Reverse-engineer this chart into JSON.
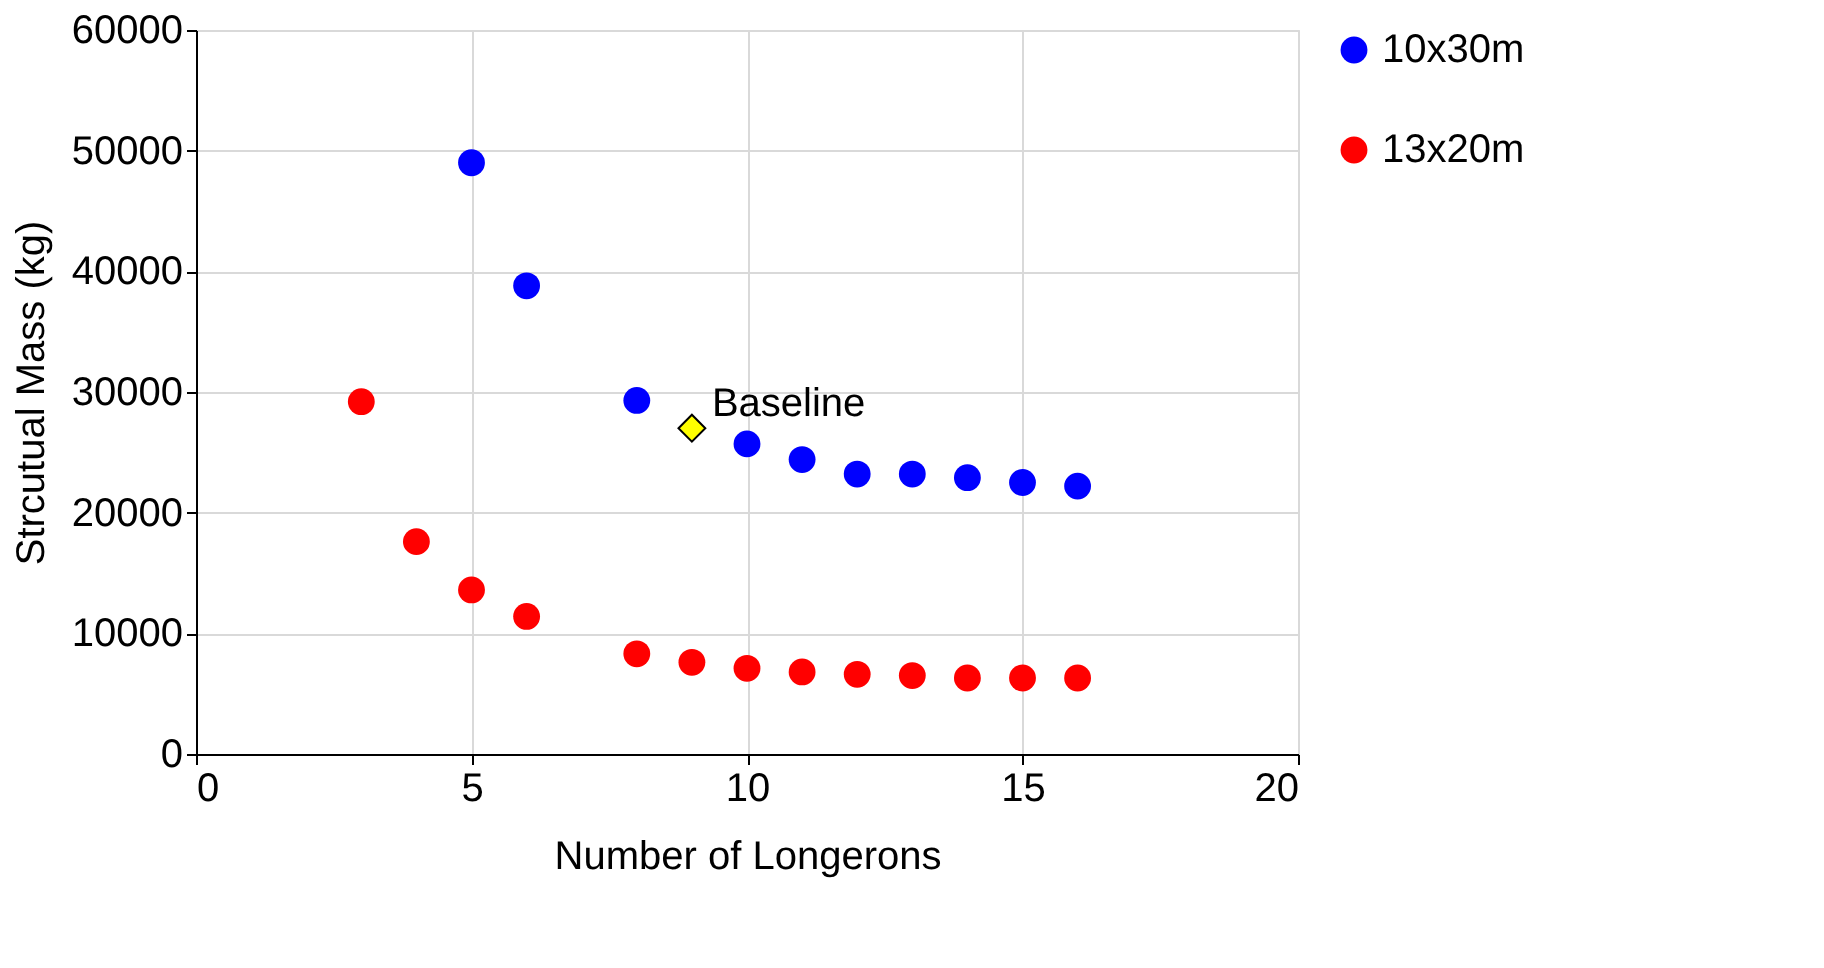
{
  "chart_data": {
    "type": "scatter",
    "xlabel": "Number of Longerons",
    "ylabel": "Strcutual Mass (kg)",
    "xlim": [
      0,
      20
    ],
    "xticks": [
      0,
      5,
      10,
      15,
      20
    ],
    "ylim": [
      0,
      60000
    ],
    "yticks": [
      0,
      10000,
      20000,
      30000,
      40000,
      50000,
      60000
    ],
    "grid": true,
    "legend": "right",
    "marker": "circle",
    "series": [
      {
        "name": "10x30m",
        "color": "#0000ff",
        "x": [
          5,
          6,
          8,
          10,
          11,
          12,
          13,
          14,
          15,
          16
        ],
        "values": [
          49000,
          38800,
          29300,
          25700,
          24400,
          23200,
          23200,
          22900,
          22500,
          22200
        ]
      },
      {
        "name": "13x20m",
        "color": "#ff0000",
        "x": [
          3,
          4,
          5,
          6,
          8,
          9,
          10,
          11,
          12,
          13,
          14,
          15,
          16
        ],
        "values": [
          29200,
          17600,
          13600,
          11400,
          8300,
          7600,
          7100,
          6800,
          6600,
          6500,
          6300,
          6300,
          6300
        ]
      },
      {
        "color": "#ffff00",
        "marker": "diamond",
        "x": [
          9
        ],
        "values": [
          27000
        ]
      }
    ],
    "annotations": [
      {
        "text": "Baseline",
        "x": 9,
        "y": 27000
      }
    ]
  }
}
